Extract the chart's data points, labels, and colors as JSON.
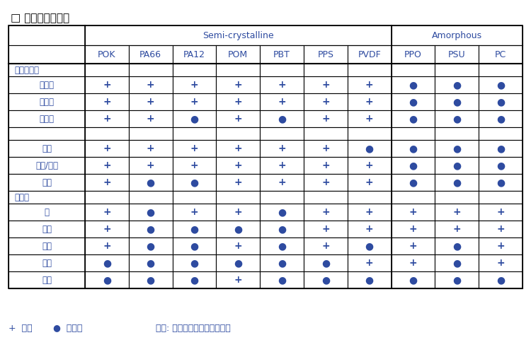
{
  "title": "□ 优异的耐化学性",
  "semi_crystalline_label": "Semi-crystalline",
  "amorphous_label": "Amorphous",
  "col_headers": [
    "POK",
    "PA66",
    "PA12",
    "POM",
    "PBT",
    "PPS",
    "PVDF",
    "PPO",
    "PSU",
    "PC"
  ],
  "semi_cols": 7,
  "amorphous_cols": 3,
  "row_groups": [
    {
      "group_label": "碳氢化合物",
      "rows": [
        {
          "label": "脂肪族",
          "values": [
            "+",
            "+",
            "+",
            "+",
            "+",
            "+",
            "+",
            "●",
            "●",
            "●"
          ]
        },
        {
          "label": "芳香族",
          "values": [
            "+",
            "+",
            "+",
            "+",
            "+",
            "+",
            "+",
            "●",
            "●",
            "●"
          ]
        },
        {
          "label": "卤化物",
          "values": [
            "+",
            "+",
            "●",
            "+",
            "●",
            "+",
            "+",
            "●",
            "●",
            "●"
          ]
        }
      ]
    },
    {
      "group_label": "",
      "rows": [
        {
          "label": "酮类",
          "values": [
            "+",
            "+",
            "+",
            "+",
            "+",
            "+",
            "●",
            "●",
            "●",
            "●"
          ]
        },
        {
          "label": "酯类/醚类",
          "values": [
            "+",
            "+",
            "+",
            "+",
            "+",
            "+",
            "+",
            "●",
            "●",
            "●"
          ]
        },
        {
          "label": "醛类",
          "values": [
            "+",
            "●",
            "●",
            "+",
            "+",
            "+",
            "+",
            "●",
            "●",
            "●"
          ]
        }
      ]
    },
    {
      "group_label": "水性的",
      "rows": [
        {
          "label": "水",
          "values": [
            "+",
            "●",
            "+",
            "+",
            "●",
            "+",
            "+",
            "+",
            "+",
            "+"
          ]
        },
        {
          "label": "弱酸",
          "values": [
            "+",
            "●",
            "●",
            "●",
            "●",
            "+",
            "+",
            "+",
            "+",
            "+"
          ]
        },
        {
          "label": "弱碱",
          "values": [
            "+",
            "●",
            "●",
            "+",
            "●",
            "+",
            "●",
            "+",
            "●",
            "+"
          ]
        },
        {
          "label": "强酸",
          "values": [
            "●",
            "●",
            "●",
            "●",
            "●",
            "●",
            "+",
            "+",
            "●",
            "+"
          ]
        },
        {
          "label": "强碱",
          "values": [
            "●",
            "●",
            "●",
            "+",
            "●",
            "●",
            "●",
            "●",
            "●",
            "●"
          ]
        }
      ]
    }
  ],
  "legend_resist": "+ 耐抗",
  "legend_not_resist": "● 不耐抗",
  "legend_note": "备注: 相对的评分包含温度影响",
  "blue_color": "#2E4BA0",
  "light_blue": "#4472C4",
  "header_bg": "#FFFFFF",
  "bg_color": "#FFFFFF",
  "border_color": "#000000"
}
